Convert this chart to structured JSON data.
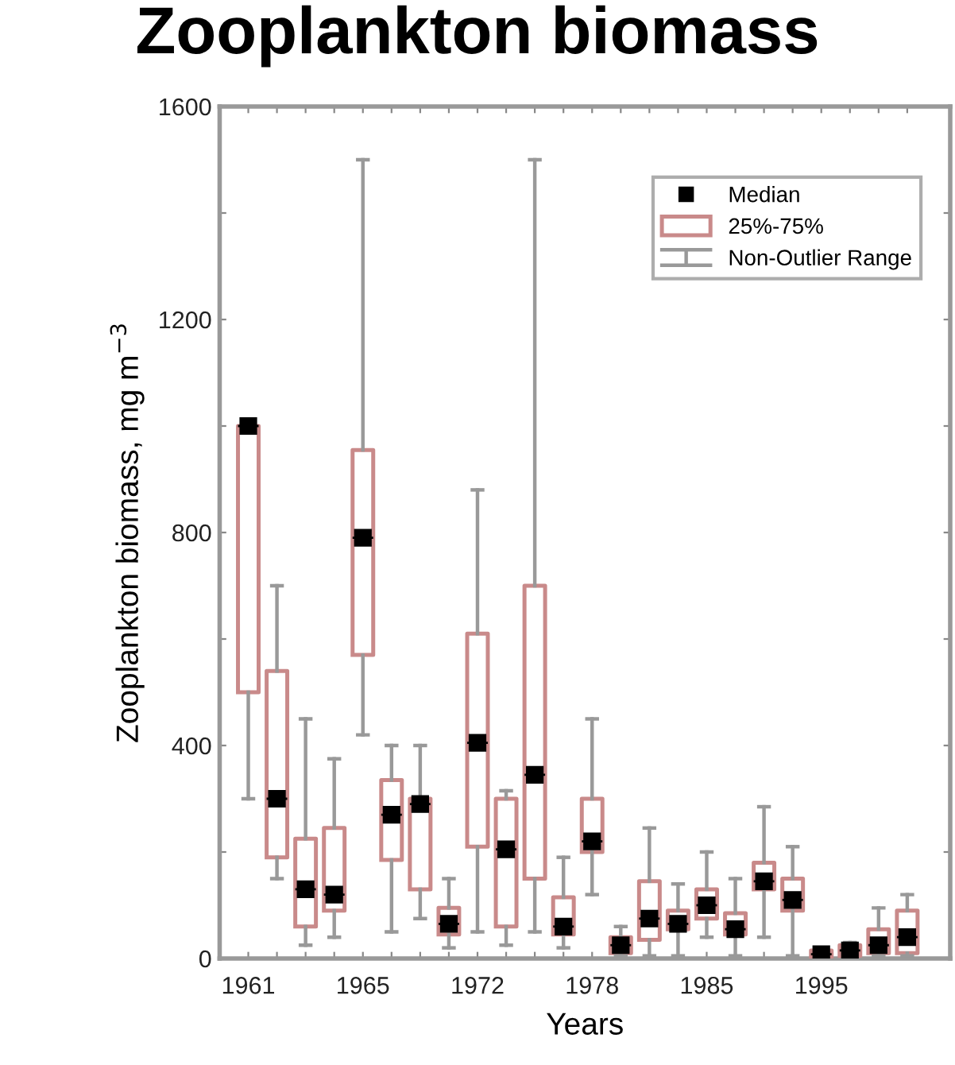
{
  "chart_data": {
    "type": "box",
    "title": "Zooplankton biomass",
    "xlabel": "Years",
    "ylabel": "Zooplankton biomass, mg m$^{−3}$",
    "categories": [
      "1961",
      null,
      null,
      null,
      "1965",
      null,
      null,
      null,
      "1972",
      null,
      null,
      null,
      "1978",
      null,
      null,
      null,
      "1985",
      null,
      null,
      null,
      "1995",
      null,
      null,
      null
    ],
    "ylim": [
      0,
      1600
    ],
    "yticks": [
      0,
      {
        "value": 200,
        "label": null
      },
      400,
      {
        "value": 600,
        "label": null
      },
      800,
      {
        "value": 1000,
        "label": null
      },
      1200,
      {
        "value": 1400,
        "label": null
      },
      1600
    ],
    "grid": false,
    "legend": "top right",
    "annotations": [
      "Non-Outlier Range"
    ],
    "series": [
      {
        "name": "Median",
        "type": "scatter",
        "color": "#000000",
        "marker": "square",
        "values": [
          1000,
          300,
          130,
          120,
          790,
          270,
          290,
          65,
          405,
          205,
          345,
          60,
          220,
          25,
          75,
          65,
          100,
          55,
          145,
          110,
          8,
          15,
          25,
          40
        ]
      },
      {
        "name": "25%-75%",
        "color": "#c98a8a",
        "boxes": [
          {
            "low": 300,
            "q1": 500,
            "median": 1000,
            "q3": 1000,
            "high": 1000
          },
          {
            "low": 150,
            "q1": 190,
            "median": 300,
            "q3": 540,
            "high": 700
          },
          {
            "low": 25,
            "q1": 60,
            "median": 130,
            "q3": 225,
            "high": 450
          },
          {
            "low": 40,
            "q1": 90,
            "median": 120,
            "q3": 245,
            "high": 375
          },
          {
            "low": 420,
            "q1": 570,
            "median": 790,
            "q3": 955,
            "high": 1500
          },
          {
            "low": 50,
            "q1": 185,
            "median": 270,
            "q3": 335,
            "high": 400
          },
          {
            "low": 75,
            "q1": 130,
            "median": 290,
            "q3": 300,
            "high": 400
          },
          {
            "low": 20,
            "q1": 45,
            "median": 65,
            "q3": 95,
            "high": 150
          },
          {
            "low": 50,
            "q1": 210,
            "median": 405,
            "q3": 610,
            "high": 880
          },
          {
            "low": 25,
            "q1": 60,
            "median": 205,
            "q3": 300,
            "high": 315
          },
          {
            "low": 50,
            "q1": 150,
            "median": 345,
            "q3": 700,
            "high": 1500
          },
          {
            "low": 20,
            "q1": 45,
            "median": 60,
            "q3": 115,
            "high": 190
          },
          {
            "low": 120,
            "q1": 200,
            "median": 220,
            "q3": 300,
            "high": 450
          },
          {
            "low": 5,
            "q1": 10,
            "median": 25,
            "q3": 40,
            "high": 60
          },
          {
            "low": 5,
            "q1": 35,
            "median": 75,
            "q3": 145,
            "high": 245
          },
          {
            "low": 5,
            "q1": 55,
            "median": 65,
            "q3": 90,
            "high": 140
          },
          {
            "low": 40,
            "q1": 75,
            "median": 100,
            "q3": 130,
            "high": 200
          },
          {
            "low": 5,
            "q1": 45,
            "median": 55,
            "q3": 85,
            "high": 150
          },
          {
            "low": 40,
            "q1": 130,
            "median": 145,
            "q3": 180,
            "high": 285
          },
          {
            "low": 5,
            "q1": 90,
            "median": 110,
            "q3": 150,
            "high": 210
          },
          {
            "low": 0,
            "q1": 0,
            "median": 8,
            "q3": 15,
            "high": 15
          },
          {
            "low": 5,
            "q1": 5,
            "median": 15,
            "q3": 25,
            "high": 30
          },
          {
            "low": 5,
            "q1": 10,
            "median": 25,
            "q3": 55,
            "high": 95
          },
          {
            "low": 5,
            "q1": 10,
            "median": 40,
            "q3": 90,
            "high": 120
          }
        ]
      }
    ]
  }
}
